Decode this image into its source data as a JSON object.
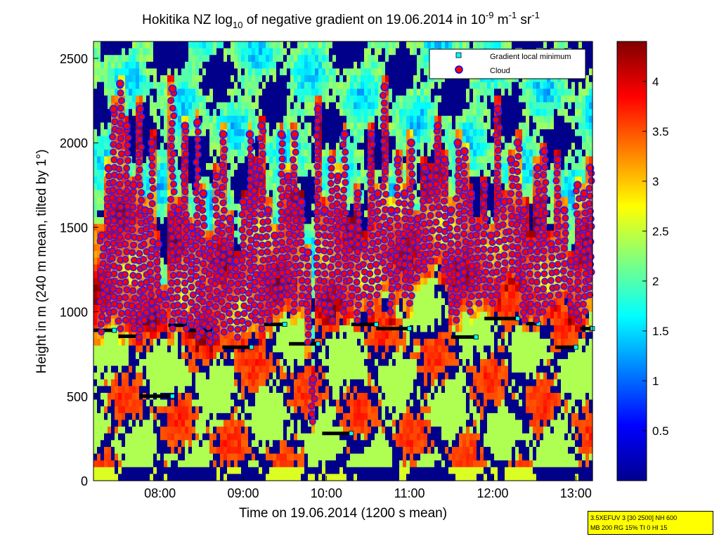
{
  "chart_data": {
    "type": "heatmap",
    "title": {
      "prefix": "Hokitika NZ log",
      "log_base": "10",
      "middle": " of negative gradient on 19.06.2014 in 10",
      "unit_exp1": "-9",
      "unit_mid": " m",
      "unit_exp2": "-1",
      "unit_mid2": " sr",
      "unit_exp3": "-1"
    },
    "xlabel": "Time on 19.06.2014 (1200 s mean)",
    "ylabel": "Height in m (240 m mean, tilted by 1°)",
    "x_range_hours": [
      7.2,
      13.2
    ],
    "x_ticks": [
      {
        "label": "08:00",
        "hour": 8
      },
      {
        "label": "09:00",
        "hour": 9
      },
      {
        "label": "10:00",
        "hour": 10
      },
      {
        "label": "11:00",
        "hour": 11
      },
      {
        "label": "12:00",
        "hour": 12
      },
      {
        "label": "13:00",
        "hour": 13
      }
    ],
    "y_range": [
      0,
      2600
    ],
    "y_ticks": [
      0,
      500,
      1000,
      1500,
      2000,
      2500
    ],
    "colorbar": {
      "range": [
        0,
        4.4
      ],
      "ticks": [
        0.5,
        1,
        1.5,
        2,
        2.5,
        3,
        3.5,
        4
      ],
      "colormap": "jet"
    },
    "legend": {
      "placement": "top-right",
      "entries": [
        {
          "label": "Gradient local minimum",
          "marker": "square",
          "color": "#00ffff"
        },
        {
          "label": "Cloud",
          "marker": "circle",
          "color": "#ff0000",
          "edge": "#0000ff"
        }
      ]
    },
    "gradient_minimum_segments": [
      {
        "t0": 7.2,
        "t1": 7.45,
        "h": 890
      },
      {
        "t0": 7.5,
        "t1": 7.75,
        "h": 855
      },
      {
        "t0": 7.75,
        "t1": 8.15,
        "h": 500
      },
      {
        "t0": 8.1,
        "t1": 8.35,
        "h": 920
      },
      {
        "t0": 8.3,
        "t1": 8.65,
        "h": 890
      },
      {
        "t0": 8.75,
        "t1": 9.1,
        "h": 790
      },
      {
        "t0": 9.25,
        "t1": 9.5,
        "h": 925
      },
      {
        "t0": 9.55,
        "t1": 9.9,
        "h": 810
      },
      {
        "t0": 9.95,
        "t1": 10.3,
        "h": 280
      },
      {
        "t0": 10.3,
        "t1": 10.6,
        "h": 925
      },
      {
        "t0": 10.6,
        "t1": 11.0,
        "h": 900
      },
      {
        "t0": 11.5,
        "t1": 11.8,
        "h": 850
      },
      {
        "t0": 11.9,
        "t1": 12.3,
        "h": 960
      },
      {
        "t0": 12.4,
        "t1": 12.55,
        "h": 930
      },
      {
        "t0": 12.75,
        "t1": 13.0,
        "h": 790
      },
      {
        "t0": 13.05,
        "t1": 13.2,
        "h": 900
      }
    ],
    "cloud_columns": [
      {
        "t": 7.3,
        "h0": 880,
        "h1": 1450
      },
      {
        "t": 7.38,
        "h0": 950,
        "h1": 1850
      },
      {
        "t": 7.44,
        "h0": 1000,
        "h1": 2200
      },
      {
        "t": 7.52,
        "h0": 900,
        "h1": 2350
      },
      {
        "t": 7.6,
        "h0": 950,
        "h1": 2100
      },
      {
        "t": 7.68,
        "h0": 900,
        "h1": 1750
      },
      {
        "t": 7.76,
        "h0": 850,
        "h1": 2200
      },
      {
        "t": 7.82,
        "h0": 950,
        "h1": 1600
      },
      {
        "t": 7.9,
        "h0": 920,
        "h1": 2000
      },
      {
        "t": 7.98,
        "h0": 980,
        "h1": 1400
      },
      {
        "t": 8.05,
        "h0": 950,
        "h1": 1100
      },
      {
        "t": 8.15,
        "h0": 900,
        "h1": 2320
      },
      {
        "t": 8.22,
        "h0": 950,
        "h1": 1600
      },
      {
        "t": 8.3,
        "h0": 900,
        "h1": 2100
      },
      {
        "t": 8.38,
        "h0": 920,
        "h1": 1500
      },
      {
        "t": 8.45,
        "h0": 850,
        "h1": 2120
      },
      {
        "t": 8.52,
        "h0": 880,
        "h1": 1700
      },
      {
        "t": 8.6,
        "h0": 820,
        "h1": 1400
      },
      {
        "t": 8.68,
        "h0": 850,
        "h1": 1800
      },
      {
        "t": 8.76,
        "h0": 880,
        "h1": 2050
      },
      {
        "t": 8.84,
        "h0": 900,
        "h1": 1550
      },
      {
        "t": 8.92,
        "h0": 850,
        "h1": 1300
      },
      {
        "t": 9.0,
        "h0": 900,
        "h1": 1650
      },
      {
        "t": 9.08,
        "h0": 930,
        "h1": 2050
      },
      {
        "t": 9.15,
        "h0": 950,
        "h1": 1850
      },
      {
        "t": 9.22,
        "h0": 900,
        "h1": 2100
      },
      {
        "t": 9.3,
        "h0": 950,
        "h1": 1600
      },
      {
        "t": 9.38,
        "h0": 1000,
        "h1": 1450
      },
      {
        "t": 9.46,
        "h0": 1050,
        "h1": 2050
      },
      {
        "t": 9.54,
        "h0": 1100,
        "h1": 1800
      },
      {
        "t": 9.62,
        "h0": 1000,
        "h1": 2050
      },
      {
        "t": 9.7,
        "h0": 1050,
        "h1": 1650
      },
      {
        "t": 9.78,
        "h0": 820,
        "h1": 1350
      },
      {
        "t": 9.84,
        "h0": 350,
        "h1": 600
      },
      {
        "t": 9.9,
        "h0": 1050,
        "h1": 2200
      },
      {
        "t": 9.98,
        "h0": 1000,
        "h1": 1600
      },
      {
        "t": 10.06,
        "h0": 950,
        "h1": 1900
      },
      {
        "t": 10.14,
        "h0": 1100,
        "h1": 1800
      },
      {
        "t": 10.22,
        "h0": 1000,
        "h1": 2050
      },
      {
        "t": 10.3,
        "h0": 1050,
        "h1": 1500
      },
      {
        "t": 10.38,
        "h0": 950,
        "h1": 1700
      },
      {
        "t": 10.46,
        "h0": 1100,
        "h1": 1400
      },
      {
        "t": 10.54,
        "h0": 1000,
        "h1": 2050
      },
      {
        "t": 10.62,
        "h0": 1100,
        "h1": 1700
      },
      {
        "t": 10.7,
        "h0": 1200,
        "h1": 2330
      },
      {
        "t": 10.78,
        "h0": 1000,
        "h1": 1600
      },
      {
        "t": 10.86,
        "h0": 1150,
        "h1": 1900
      },
      {
        "t": 10.94,
        "h0": 1100,
        "h1": 1700
      },
      {
        "t": 11.02,
        "h0": 1050,
        "h1": 2000
      },
      {
        "t": 11.1,
        "h0": 1200,
        "h1": 1550
      },
      {
        "t": 11.18,
        "h0": 1250,
        "h1": 1850
      },
      {
        "t": 11.26,
        "h0": 1300,
        "h1": 1800
      },
      {
        "t": 11.34,
        "h0": 1350,
        "h1": 2100
      },
      {
        "t": 11.42,
        "h0": 1250,
        "h1": 1900
      },
      {
        "t": 11.5,
        "h0": 1000,
        "h1": 1600
      },
      {
        "t": 11.58,
        "h0": 950,
        "h1": 2000
      },
      {
        "t": 11.66,
        "h0": 1100,
        "h1": 1950
      },
      {
        "t": 11.74,
        "h0": 1000,
        "h1": 1700
      },
      {
        "t": 11.82,
        "h0": 1050,
        "h1": 1500
      },
      {
        "t": 11.9,
        "h0": 1100,
        "h1": 1750
      },
      {
        "t": 11.98,
        "h0": 1050,
        "h1": 1450
      },
      {
        "t": 12.06,
        "h0": 1100,
        "h1": 2200
      },
      {
        "t": 12.14,
        "h0": 1200,
        "h1": 1650
      },
      {
        "t": 12.22,
        "h0": 1250,
        "h1": 1900
      },
      {
        "t": 12.3,
        "h0": 1200,
        "h1": 2000
      },
      {
        "t": 12.38,
        "h0": 950,
        "h1": 1600
      },
      {
        "t": 12.46,
        "h0": 1000,
        "h1": 1400
      },
      {
        "t": 12.54,
        "h0": 950,
        "h1": 1850
      },
      {
        "t": 12.62,
        "h0": 1000,
        "h1": 1950
      },
      {
        "t": 12.7,
        "h0": 1050,
        "h1": 1400
      },
      {
        "t": 12.78,
        "h0": 1100,
        "h1": 1900
      },
      {
        "t": 12.86,
        "h0": 1150,
        "h1": 1600
      },
      {
        "t": 12.94,
        "h0": 1000,
        "h1": 1300
      },
      {
        "t": 13.02,
        "h0": 950,
        "h1": 1750
      },
      {
        "t": 13.1,
        "h0": 1000,
        "h1": 1700
      },
      {
        "t": 13.17,
        "h0": 1100,
        "h1": 1850
      }
    ]
  },
  "info_box": {
    "line1": "3.5XEFUV 3 [30 2500] NH 600",
    "line2": "MB 200 RG 15% TI 0 HI 15",
    "background": "#ffff00"
  }
}
